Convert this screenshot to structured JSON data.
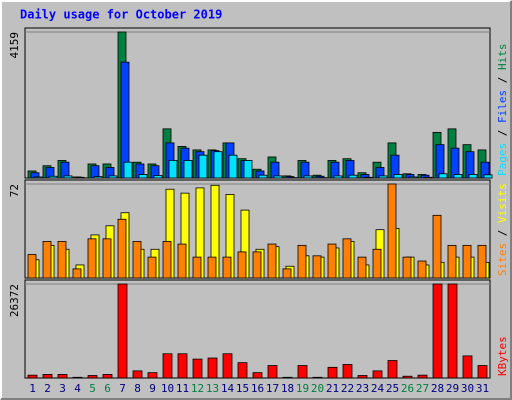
{
  "chart_data": {
    "type": "bar",
    "title": "Daily usage for October 2019",
    "categories": [
      "1",
      "2",
      "3",
      "4",
      "5",
      "6",
      "7",
      "8",
      "9",
      "10",
      "11",
      "12",
      "13",
      "14",
      "15",
      "16",
      "17",
      "18",
      "19",
      "20",
      "21",
      "22",
      "23",
      "24",
      "25",
      "26",
      "27",
      "28",
      "29",
      "30",
      "31"
    ],
    "category_colors": [
      "#000080",
      "#000080",
      "#000080",
      "#000080",
      "#008040",
      "#008040",
      "#000080",
      "#000080",
      "#000080",
      "#000080",
      "#000080",
      "#008040",
      "#008040",
      "#000080",
      "#000080",
      "#000080",
      "#000080",
      "#000080",
      "#008040",
      "#008040",
      "#000080",
      "#000080",
      "#000080",
      "#000080",
      "#000080",
      "#008040",
      "#008040",
      "#000080",
      "#000080",
      "#000080",
      "#000080"
    ],
    "panels": [
      {
        "ylim": [
          0,
          4159
        ],
        "yticks": [
          4159
        ],
        "series": [
          {
            "name": "Hits",
            "color": "#008040",
            "values": [
              200,
              350,
              500,
              30,
              400,
              400,
              4159,
              450,
              400,
              1400,
              900,
              800,
              800,
              1000,
              550,
              250,
              600,
              60,
              500,
              80,
              500,
              550,
              150,
              450,
              1000,
              120,
              100,
              1300,
              1400,
              950,
              800
            ]
          },
          {
            "name": "Files",
            "color": "#0040ff",
            "values": [
              150,
              300,
              450,
              20,
              350,
              300,
              3300,
              400,
              350,
              1000,
              850,
              750,
              780,
              1000,
              500,
              200,
              450,
              40,
              450,
              50,
              450,
              500,
              100,
              300,
              650,
              100,
              80,
              950,
              850,
              750,
              450
            ]
          },
          {
            "name": "Pages",
            "color": "#00e0ff",
            "values": [
              30,
              50,
              60,
              5,
              40,
              60,
              450,
              100,
              70,
              500,
              500,
              650,
              750,
              650,
              500,
              80,
              60,
              10,
              60,
              10,
              60,
              80,
              20,
              60,
              100,
              30,
              20,
              120,
              100,
              100,
              90
            ]
          }
        ]
      },
      {
        "ylim": [
          0,
          72
        ],
        "yticks": [
          72
        ],
        "series": [
          {
            "name": "Visits",
            "color": "#ffff00",
            "values": [
              14,
              25,
              22,
              10,
              33,
              40,
              50,
              22,
              22,
              68,
              65,
              69,
              71,
              64,
              52,
              22,
              24,
              9,
              17,
              16,
              23,
              28,
              10,
              37,
              38,
              16,
              10,
              12,
              16,
              16,
              12
            ]
          },
          {
            "name": "Sites",
            "color": "#ff8000",
            "values": [
              18,
              28,
              28,
              7,
              30,
              30,
              45,
              28,
              16,
              28,
              26,
              16,
              16,
              16,
              20,
              20,
              26,
              7,
              25,
              17,
              26,
              30,
              16,
              22,
              72,
              16,
              13,
              48,
              25,
              25,
              25
            ]
          }
        ]
      },
      {
        "ylim": [
          0,
          26372
        ],
        "yticks": [
          26372
        ],
        "series": [
          {
            "name": "KBytes",
            "color": "#ff0000",
            "values": [
              800,
              1000,
              1000,
              200,
              700,
              1000,
              26372,
              2000,
              1500,
              6800,
              6800,
              5300,
              5600,
              6800,
              4300,
              1500,
              3500,
              200,
              3500,
              200,
              3000,
              3800,
              700,
              2000,
              4900,
              500,
              800,
              26372,
              26372,
              6200,
              3500
            ]
          }
        ]
      }
    ]
  }
}
